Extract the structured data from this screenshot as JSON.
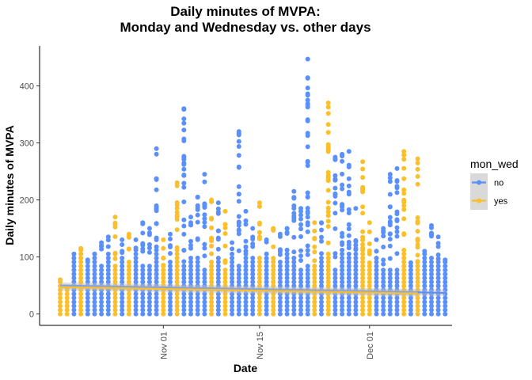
{
  "chart_data": {
    "type": "scatter",
    "title_line1": "Daily minutes of MVPA:",
    "title_line2": "Monday and Wednesday vs. other days",
    "xlabel": "Date",
    "ylabel": "Daily minutes of MVPA",
    "x_ticks": [
      "Nov 01",
      "Nov 15",
      "Dec 01"
    ],
    "x_tick_dates": [
      "2021-11-01",
      "2021-11-15",
      "2021-12-01"
    ],
    "y_ticks": [
      0,
      100,
      200,
      300,
      400
    ],
    "xlim": [
      "2021-10-14",
      "2021-12-13"
    ],
    "ylim": [
      -20,
      470
    ],
    "grid": false,
    "legend": {
      "title": "mon_wed",
      "position": "right",
      "entries": [
        {
          "label": "no",
          "color": "#5b8ff9"
        },
        {
          "label": "yes",
          "color": "#fbbf2c"
        }
      ]
    },
    "series": [
      {
        "name": "no",
        "color": "#5b8ff9"
      },
      {
        "name": "yes",
        "color": "#fbbf2c"
      }
    ],
    "days": [
      {
        "date": "2021-10-17",
        "group": "yes",
        "max": 60
      },
      {
        "date": "2021-10-18",
        "group": "yes",
        "max": 45
      },
      {
        "date": "2021-10-19",
        "group": "no",
        "max": 105
      },
      {
        "date": "2021-10-20",
        "group": "yes",
        "max": 115
      },
      {
        "date": "2021-10-21",
        "group": "no",
        "max": 95
      },
      {
        "date": "2021-10-22",
        "group": "no",
        "max": 105
      },
      {
        "date": "2021-10-23",
        "group": "no",
        "max": 125
      },
      {
        "date": "2021-10-24",
        "group": "no",
        "max": 135
      },
      {
        "date": "2021-10-25",
        "group": "yes",
        "max": 170
      },
      {
        "date": "2021-10-26",
        "group": "no",
        "max": 130
      },
      {
        "date": "2021-10-27",
        "group": "yes",
        "max": 140
      },
      {
        "date": "2021-10-28",
        "group": "no",
        "max": 130
      },
      {
        "date": "2021-10-29",
        "group": "no",
        "max": 160
      },
      {
        "date": "2021-10-30",
        "group": "no",
        "max": 150
      },
      {
        "date": "2021-10-31",
        "group": "no",
        "max": 290
      },
      {
        "date": "2021-11-01",
        "group": "yes",
        "max": 130
      },
      {
        "date": "2021-11-02",
        "group": "no",
        "max": 140
      },
      {
        "date": "2021-11-03",
        "group": "yes",
        "max": 230
      },
      {
        "date": "2021-11-04",
        "group": "no",
        "max": 360
      },
      {
        "date": "2021-11-05",
        "group": "no",
        "max": 170
      },
      {
        "date": "2021-11-06",
        "group": "no",
        "max": 205
      },
      {
        "date": "2021-11-07",
        "group": "no",
        "max": 245
      },
      {
        "date": "2021-11-08",
        "group": "yes",
        "max": 200
      },
      {
        "date": "2021-11-09",
        "group": "no",
        "max": 195
      },
      {
        "date": "2021-11-10",
        "group": "yes",
        "max": 180
      },
      {
        "date": "2021-11-11",
        "group": "no",
        "max": 125
      },
      {
        "date": "2021-11-12",
        "group": "no",
        "max": 320
      },
      {
        "date": "2021-11-13",
        "group": "no",
        "max": 180
      },
      {
        "date": "2021-11-14",
        "group": "no",
        "max": 150
      },
      {
        "date": "2021-11-15",
        "group": "yes",
        "max": 195
      },
      {
        "date": "2021-11-16",
        "group": "no",
        "max": 130
      },
      {
        "date": "2021-11-17",
        "group": "yes",
        "max": 150
      },
      {
        "date": "2021-11-18",
        "group": "no",
        "max": 140
      },
      {
        "date": "2021-11-19",
        "group": "no",
        "max": 150
      },
      {
        "date": "2021-11-20",
        "group": "no",
        "max": 215
      },
      {
        "date": "2021-11-21",
        "group": "no",
        "max": 185
      },
      {
        "date": "2021-11-22",
        "group": "no",
        "max": 447
      },
      {
        "date": "2021-11-23",
        "group": "yes",
        "max": 160
      },
      {
        "date": "2021-11-24",
        "group": "no",
        "max": 160
      },
      {
        "date": "2021-11-25",
        "group": "yes",
        "max": 370
      },
      {
        "date": "2021-11-26",
        "group": "no",
        "max": 275
      },
      {
        "date": "2021-11-27",
        "group": "no",
        "max": 280
      },
      {
        "date": "2021-11-28",
        "group": "no",
        "max": 285
      },
      {
        "date": "2021-11-29",
        "group": "no",
        "max": 185
      },
      {
        "date": "2021-11-30",
        "group": "yes",
        "max": 267
      },
      {
        "date": "2021-12-01",
        "group": "yes",
        "max": 160
      },
      {
        "date": "2021-12-02",
        "group": "no",
        "max": 130
      },
      {
        "date": "2021-12-03",
        "group": "no",
        "max": 150
      },
      {
        "date": "2021-12-04",
        "group": "no",
        "max": 245
      },
      {
        "date": "2021-12-05",
        "group": "no",
        "max": 255
      },
      {
        "date": "2021-12-06",
        "group": "yes",
        "max": 285
      },
      {
        "date": "2021-12-07",
        "group": "no",
        "max": 90
      },
      {
        "date": "2021-12-08",
        "group": "yes",
        "max": 272
      },
      {
        "date": "2021-12-09",
        "group": "no",
        "max": 110
      },
      {
        "date": "2021-12-10",
        "group": "no",
        "max": 155
      },
      {
        "date": "2021-12-11",
        "group": "no",
        "max": 135
      },
      {
        "date": "2021-12-12",
        "group": "no",
        "max": 95
      }
    ],
    "trend_lines": [
      {
        "name": "no",
        "color": "#5b8ff9",
        "x": [
          "2021-10-17",
          "2021-12-12"
        ],
        "y": [
          50,
          37
        ]
      },
      {
        "name": "yes",
        "color": "#fbbf2c",
        "x": [
          "2021-10-17",
          "2021-12-08"
        ],
        "y": [
          47,
          36
        ]
      }
    ]
  }
}
